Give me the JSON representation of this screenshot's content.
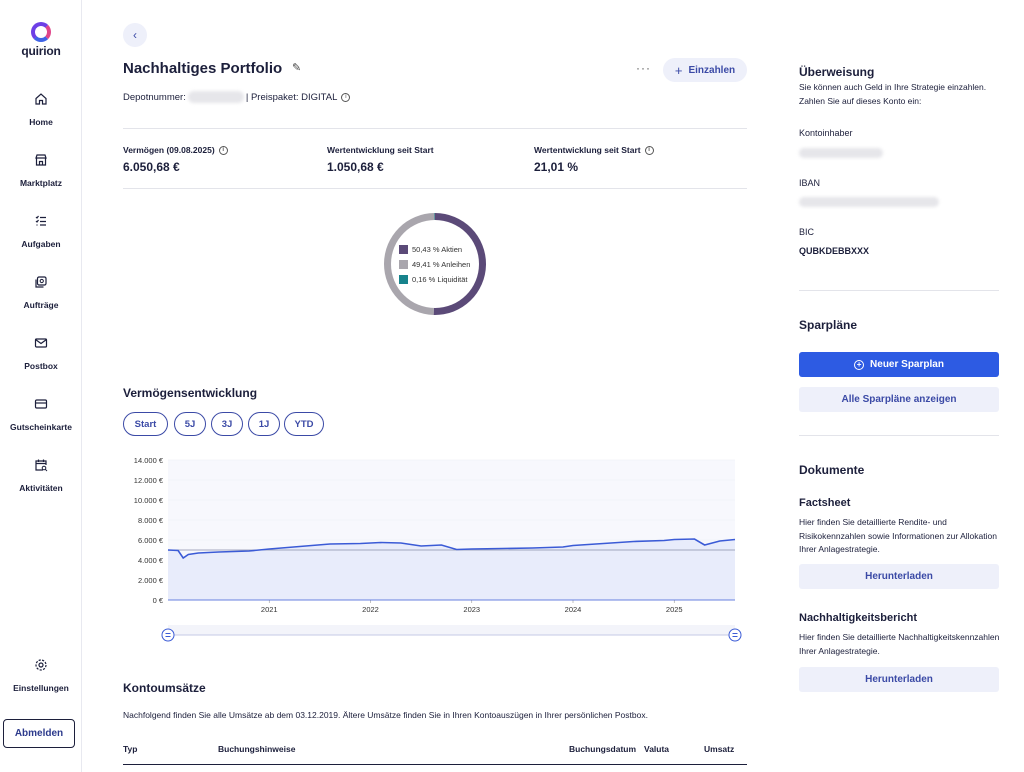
{
  "brand": {
    "name": "quirion"
  },
  "sidebar": {
    "items": [
      {
        "label": "Home",
        "icon": "home-icon"
      },
      {
        "label": "Marktplatz",
        "icon": "store-icon"
      },
      {
        "label": "Aufgaben",
        "icon": "checklist-icon"
      },
      {
        "label": "Aufträge",
        "icon": "orders-icon"
      },
      {
        "label": "Postbox",
        "icon": "mail-icon"
      },
      {
        "label": "Gutscheinkarte",
        "icon": "card-icon"
      },
      {
        "label": "Aktivitäten",
        "icon": "calendar-search-icon"
      }
    ],
    "settings_label": "Einstellungen",
    "logout_label": "Abmelden"
  },
  "header": {
    "title": "Nachhaltiges Portfolio",
    "more_label": "···",
    "deposit_label": "Einzahlen",
    "depot_label": "Depotnummer:",
    "price_label": "| Preispaket: DIGITAL"
  },
  "stats": [
    {
      "label": "Vermögen (09.08.2025)",
      "value": "6.050,68 €",
      "info": true
    },
    {
      "label": "Wertentwicklung seit Start",
      "value": "1.050,68 €",
      "info": false
    },
    {
      "label": "Wertentwicklung seit Start",
      "value": "21,01 %",
      "info": true
    }
  ],
  "allocation": [
    {
      "label": "50,43 % Aktien",
      "value": 50.43,
      "color": "#5b4a78"
    },
    {
      "label": "49,41 % Anleihen",
      "value": 49.41,
      "color": "#a9a6ad"
    },
    {
      "label": "0,16 % Liquidität",
      "value": 0.16,
      "color": "#17838c"
    }
  ],
  "chart_section": {
    "title": "Vermögensentwicklung",
    "ranges": [
      "Start",
      "5J",
      "3J",
      "1J",
      "YTD"
    ]
  },
  "chart_data": {
    "type": "area",
    "y_ticks": [
      "14.000 €",
      "12.000 €",
      "10.000 €",
      "8.000 €",
      "6.000 €",
      "4.000 €",
      "2.000 €",
      "0 €"
    ],
    "x_ticks": [
      "2021",
      "2022",
      "2023",
      "2024",
      "2025"
    ],
    "ylim": [
      0,
      14000
    ],
    "xlim": [
      2020.0,
      2025.6
    ],
    "baseline": 5000,
    "x": [
      2020.0,
      2020.1,
      2020.15,
      2020.2,
      2020.3,
      2020.5,
      2020.8,
      2021.0,
      2021.3,
      2021.6,
      2021.9,
      2022.1,
      2022.3,
      2022.4,
      2022.5,
      2022.7,
      2022.85,
      2023.0,
      2023.3,
      2023.6,
      2023.9,
      2024.0,
      2024.3,
      2024.6,
      2024.9,
      2025.0,
      2025.2,
      2025.3,
      2025.45,
      2025.6
    ],
    "y": [
      5000,
      4950,
      4200,
      4550,
      4700,
      4800,
      4900,
      5100,
      5350,
      5600,
      5650,
      5750,
      5700,
      5550,
      5400,
      5500,
      5050,
      5100,
      5150,
      5200,
      5300,
      5450,
      5650,
      5850,
      5950,
      6050,
      6100,
      5500,
      5900,
      6050
    ]
  },
  "transactions": {
    "title": "Kontoumsätze",
    "note": "Nachfolgend finden Sie alle Umsätze ab dem 03.12.2019. Ältere Umsätze finden Sie in Ihren Kontoauszügen in Ihrer persönlichen Postbox.",
    "columns": [
      "Typ",
      "Buchungshinweise",
      "Buchungsdatum",
      "Valuta",
      "Umsatz"
    ]
  },
  "transfer": {
    "title": "Überweisung",
    "text": "Sie können auch Geld in Ihre Strategie einzahlen. Zahlen Sie auf dieses Konto ein:",
    "holder_label": "Kontoinhaber",
    "iban_label": "IBAN",
    "bic_label": "BIC",
    "bic_value": "QUBKDEBBXXX"
  },
  "savings": {
    "title": "Sparpläne",
    "new_label": "Neuer Sparplan",
    "all_label": "Alle Sparpläne anzeigen"
  },
  "documents": {
    "title": "Dokumente",
    "factsheet_title": "Factsheet",
    "factsheet_text": "Hier finden Sie detaillierte Rendite- und Risikokennzahlen sowie Informationen zur Allokation Ihrer Anlagestrategie.",
    "factsheet_btn": "Herunterladen",
    "report_title": "Nachhaltigkeitsbericht",
    "report_text": "Hier finden Sie detaillierte Nachhaltigkeitskennzahlen Ihrer Anlagestrategie.",
    "report_btn": "Herunterladen"
  }
}
